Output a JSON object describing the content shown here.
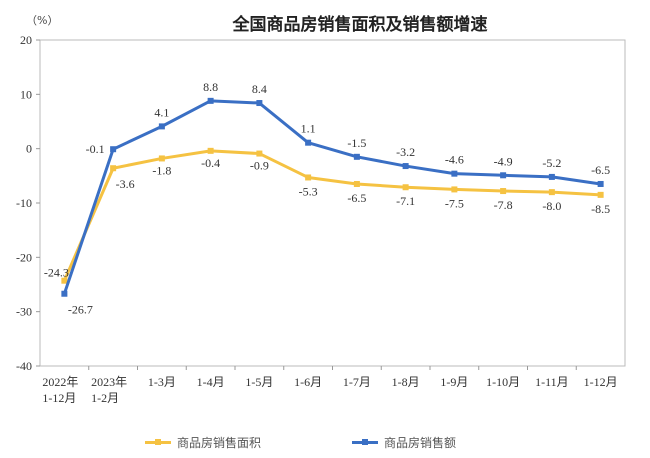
{
  "chart_data": {
    "type": "line",
    "title": "全国商品房销售面积及销售额增速",
    "ylabel": "（%）",
    "ylim": [
      -40,
      20
    ],
    "yticks": [
      20,
      10,
      0,
      -10,
      -20,
      -30,
      -40
    ],
    "grid": false,
    "legend_position": "bottom",
    "categories": [
      [
        "2022年",
        "1-12月"
      ],
      [
        "2023年",
        "1-2月"
      ],
      [
        "1-3月"
      ],
      [
        "1-4月"
      ],
      [
        "1-5月"
      ],
      [
        "1-6月"
      ],
      [
        "1-7月"
      ],
      [
        "1-8月"
      ],
      [
        "1-9月"
      ],
      [
        "1-10月"
      ],
      [
        "1-11月"
      ],
      [
        "1-12月"
      ]
    ],
    "series": [
      {
        "name": "商品房销售面积",
        "color": "#f5c242",
        "values": [
          -24.3,
          -3.6,
          -1.8,
          -0.4,
          -0.9,
          -5.3,
          -6.5,
          -7.1,
          -7.5,
          -7.8,
          -8.0,
          -8.5
        ]
      },
      {
        "name": "商品房销售额",
        "color": "#3a6fc4",
        "values": [
          -26.7,
          -0.1,
          4.1,
          8.8,
          8.4,
          1.1,
          -1.5,
          -3.2,
          -4.6,
          -4.9,
          -5.2,
          -6.5
        ]
      }
    ]
  }
}
